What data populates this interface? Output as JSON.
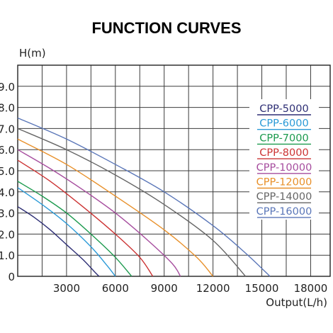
{
  "chart_data": {
    "type": "line",
    "title": "FUNCTION CURVES",
    "ylabel": "H(m)",
    "xlabel": "Output(L/h)",
    "x_ticks": [
      "3000",
      "6000",
      "9000",
      "12000",
      "15000",
      "18000"
    ],
    "y_ticks": [
      "0",
      "1.0",
      "2.0",
      "3.0",
      "4.0",
      "5.0",
      "6.0",
      "7.0",
      "8.0",
      "9.0"
    ],
    "xlim": [
      0,
      19200
    ],
    "ylim": [
      0,
      10
    ],
    "grid": true,
    "legend_position": "right",
    "series": [
      {
        "name": "CPP-5000",
        "color": "#2e2f75",
        "x": [
          0,
          1000,
          2000,
          3000,
          4000,
          4800,
          5000
        ],
        "y": [
          3.3,
          2.8,
          2.2,
          1.5,
          0.8,
          0.15,
          0
        ]
      },
      {
        "name": "CPP-6000",
        "color": "#2b9ad7",
        "x": [
          0,
          1500,
          3000,
          4500,
          5500,
          6000
        ],
        "y": [
          4.2,
          3.4,
          2.5,
          1.4,
          0.5,
          0
        ]
      },
      {
        "name": "CPP-7000",
        "color": "#1c9a4e",
        "x": [
          0,
          1500,
          3000,
          4500,
          6000,
          7000
        ],
        "y": [
          4.5,
          3.8,
          3.0,
          2.0,
          0.9,
          0
        ]
      },
      {
        "name": "CPP-8000",
        "color": "#cc3333",
        "x": [
          0,
          2000,
          4000,
          6000,
          7500,
          8300
        ],
        "y": [
          5.5,
          4.5,
          3.3,
          2.0,
          0.9,
          0
        ]
      },
      {
        "name": "CPP-10000",
        "color": "#a64d9e",
        "x": [
          0,
          2000,
          4000,
          6000,
          8000,
          9500,
          10000
        ],
        "y": [
          6.0,
          5.1,
          4.1,
          3.0,
          1.7,
          0.6,
          0
        ]
      },
      {
        "name": "CPP-12000",
        "color": "#e8902a",
        "x": [
          0,
          3000,
          6000,
          9000,
          11000,
          12000
        ],
        "y": [
          6.5,
          5.3,
          3.8,
          2.2,
          0.9,
          0
        ]
      },
      {
        "name": "CPP-14000",
        "color": "#666666",
        "x": [
          0,
          3000,
          6000,
          9000,
          12000,
          14000
        ],
        "y": [
          7.0,
          6.0,
          4.8,
          3.4,
          1.7,
          0
        ]
      },
      {
        "name": "CPP-16000",
        "color": "#5a76b8",
        "x": [
          0,
          3000,
          6000,
          9000,
          12000,
          14000,
          15500
        ],
        "y": [
          7.5,
          6.5,
          5.3,
          4.0,
          2.4,
          1.1,
          0
        ]
      }
    ]
  }
}
